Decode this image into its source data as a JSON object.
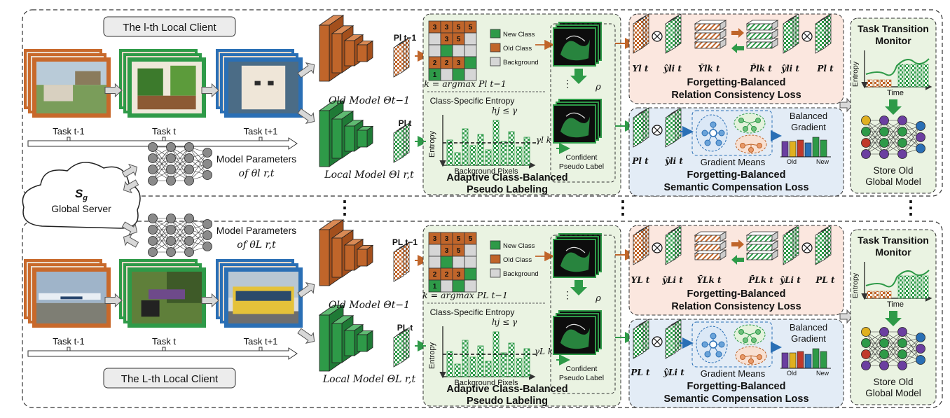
{
  "clients": [
    {
      "title": "The l-th Local Client",
      "tasks": [
        "Task t-1",
        "Task t",
        "Task t+1"
      ],
      "params_label": "Model Parameters",
      "params_symbol": "of θl r,t",
      "old_model": "Old Model Θt−1",
      "local_model": "Local Model Θl r,t",
      "p_prev": "Pl t−1",
      "p_cur": "Pl t",
      "argmax": "k = argmax Pl t−1",
      "gamma": "γl k",
      "inputs_rel": [
        "Yl t",
        "ŷli t",
        "Ȳlk t",
        "P̄lk t",
        "ŷli t",
        "Pl t"
      ],
      "inputs_sem": [
        "Pl t",
        "ŷli t"
      ]
    },
    {
      "title": "The L-th Local Client",
      "tasks": [
        "Task t-1",
        "Task t",
        "Task t+1"
      ],
      "params_label": "Model Parameters",
      "params_symbol": "of θL r,t",
      "old_model": "Old Model Θt−1",
      "local_model": "Local Model ΘL r,t",
      "p_prev": "PL t−1",
      "p_cur": "PL t",
      "argmax": "k = argmax PL t−1",
      "gamma": "γL k",
      "inputs_rel": [
        "YL t",
        "ŷLi t",
        "ȲLk t",
        "P̄Lk t",
        "ŷLi t",
        "PL t"
      ],
      "inputs_sem": [
        "PL t",
        "ŷLi t"
      ]
    }
  ],
  "pseudo": {
    "legend": [
      "New Class",
      "Old Class",
      "Background"
    ],
    "entropy_title": "Class-Specific Entropy",
    "h_condition": "hj ≤ γ",
    "y_axis": "Entropy",
    "x_axis": "Background Pixels",
    "confident": [
      "Confident",
      "Pseudo Label"
    ],
    "rho": "ρ",
    "section_title": [
      "Adaptive Class-Balanced",
      "Pseudo Labeling"
    ],
    "grid": [
      [
        "3",
        "3",
        "5",
        "5"
      ],
      [
        "",
        "3",
        "5",
        ""
      ],
      [
        "",
        "",
        "",
        ""
      ],
      [
        "2",
        "2",
        "3",
        ""
      ],
      [
        "1",
        "",
        "",
        ""
      ]
    ]
  },
  "relation": {
    "title": [
      "Forgetting-Balanced",
      "Relation Consistency Loss"
    ]
  },
  "semantic": {
    "title": [
      "Forgetting-Balanced",
      "Semantic Compensation Loss"
    ],
    "gradient_means": "Gradient Means",
    "balanced": [
      "Balanced",
      "Gradient"
    ],
    "bar_labels": [
      "Old",
      "New"
    ]
  },
  "monitor": {
    "title": [
      "Task Transition",
      "Monitor"
    ],
    "y_axis": "Entropy",
    "x_axis": "Time",
    "store": [
      "Store Old",
      "Global Model"
    ]
  },
  "server": {
    "symbol": "Sg",
    "label": "Global Server"
  },
  "separator": "⋮",
  "colors": {
    "orange": "#c0652a",
    "green": "#2e9a48",
    "light_green_bg": "#eaf3e2",
    "light_orange_bg": "#fbe7df",
    "light_blue_bg": "#e3ecf6"
  }
}
